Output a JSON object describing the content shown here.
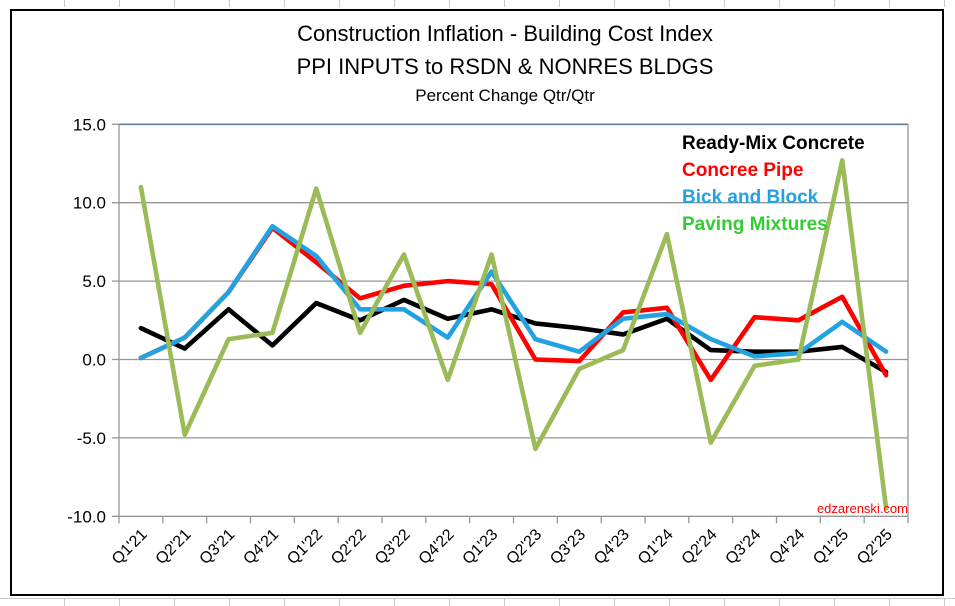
{
  "title": {
    "line1": "Construction Inflation - Building Cost Index",
    "line2": "PPI INPUTS  to RSDN & NONRES BLDGS",
    "line3": "Percent Change Qtr/Qtr"
  },
  "watermark": "edzarenski.com",
  "colors": {
    "gridline": "#969696",
    "plot_top_border": "#5B7E9B",
    "axis_text": "#000000",
    "watermark_red": "#FF0000"
  },
  "chart_data": {
    "type": "line",
    "title": "Construction Inflation - Building Cost Index",
    "subtitle": "PPI INPUTS  to RSDN & NONRES BLDGS",
    "subtitle2": "Percent Change Qtr/Qtr",
    "categories": [
      "Q1'21",
      "Q2'21",
      "Q3'21",
      "Q4'21",
      "Q1'22",
      "Q2'22",
      "Q3'22",
      "Q4'22",
      "Q1'23",
      "Q2'23",
      "Q3'23",
      "Q4'23",
      "Q1'24",
      "Q2'24",
      "Q3'24",
      "Q4'24",
      "Q1'25",
      "Q2'25"
    ],
    "series": [
      {
        "name": "Ready-Mix Concrete",
        "color": "#000000",
        "values": [
          2.0,
          0.7,
          3.2,
          0.9,
          3.6,
          2.5,
          3.8,
          2.6,
          3.2,
          2.3,
          2.0,
          1.6,
          2.6,
          0.6,
          0.5,
          0.5,
          0.8,
          -0.8
        ]
      },
      {
        "name": "Concree Pipe",
        "color": "#FF0000",
        "values": [
          0.1,
          1.4,
          4.3,
          8.4,
          6.2,
          3.9,
          4.7,
          5.0,
          4.8,
          0.0,
          -0.1,
          3.0,
          3.3,
          -1.3,
          2.7,
          2.5,
          4.0,
          -1.0
        ]
      },
      {
        "name": "Bick and Block",
        "color": "#22A2E0",
        "values": [
          0.1,
          1.4,
          4.3,
          8.5,
          6.6,
          3.2,
          3.2,
          1.4,
          5.6,
          1.3,
          0.5,
          2.6,
          2.9,
          1.3,
          0.2,
          0.4,
          2.4,
          0.5
        ]
      },
      {
        "name": "Paving Mixtures",
        "color": "#9BBB59",
        "legend_color": "#33CC33",
        "values": [
          11.0,
          -4.8,
          1.3,
          1.7,
          10.9,
          1.7,
          6.7,
          -1.3,
          6.7,
          -5.7,
          -0.6,
          0.6,
          8.0,
          -5.3,
          -0.4,
          0.0,
          12.7,
          -9.5
        ]
      }
    ],
    "ylim": [
      -10,
      15
    ],
    "ytick_values": [
      15,
      10,
      5,
      0,
      -5,
      -10
    ],
    "ytick_labels": [
      "15.0",
      "10.0",
      "5.0",
      "0.0",
      "-5.0",
      "-10.0"
    ],
    "grid": true,
    "legend_position": "top-right-inside",
    "xlabel": "",
    "ylabel": ""
  }
}
